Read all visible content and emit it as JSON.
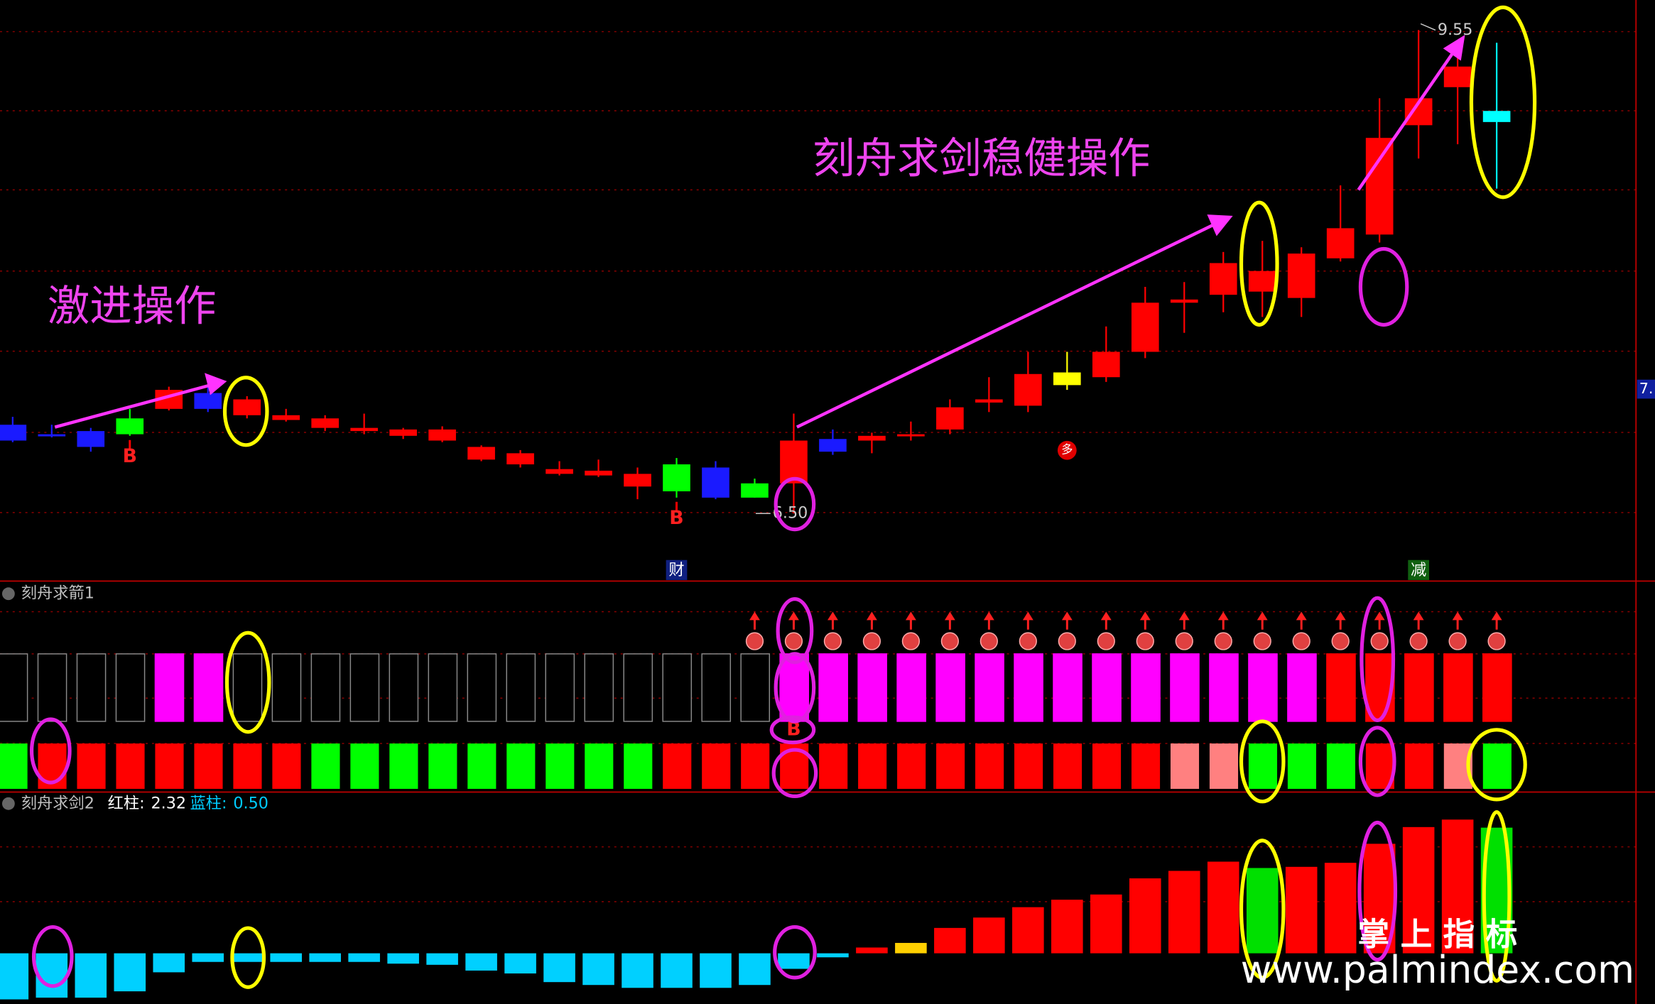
{
  "chart_data": [
    {
      "type": "candlestick",
      "annotations": [
        "激进操作",
        "刻舟求剑稳健操作"
      ],
      "open": [
        7.06,
        7.0,
        7.02,
        7.1,
        7.16,
        7.26,
        7.12,
        7.09,
        7.04,
        7.02,
        6.99,
        6.96,
        6.84,
        6.81,
        6.75,
        6.74,
        6.67,
        6.81,
        6.79,
        6.69,
        6.69,
        6.97,
        6.96,
        6.99,
        7.03,
        7.2,
        7.18,
        7.39,
        7.36,
        7.52,
        7.83,
        7.88,
        7.9,
        7.86,
        8.11,
        8.26,
        8.95,
        9.19,
        9.04
      ],
      "high": [
        7.11,
        7.06,
        7.04,
        7.16,
        7.3,
        7.3,
        7.24,
        7.16,
        7.12,
        7.13,
        7.04,
        7.05,
        6.93,
        6.9,
        6.83,
        6.84,
        6.79,
        6.85,
        6.83,
        6.72,
        7.13,
        7.03,
        7.01,
        7.08,
        7.22,
        7.36,
        7.52,
        7.52,
        7.68,
        7.93,
        7.96,
        8.15,
        8.22,
        8.18,
        8.57,
        9.12,
        9.55,
        9.48,
        9.47
      ],
      "low": [
        6.95,
        6.98,
        6.89,
        6.99,
        7.15,
        7.14,
        7.1,
        7.08,
        7.02,
        7.0,
        6.97,
        6.95,
        6.83,
        6.79,
        6.74,
        6.73,
        6.59,
        6.6,
        6.59,
        6.6,
        6.5,
        6.87,
        6.88,
        6.96,
        7.0,
        7.14,
        7.14,
        7.28,
        7.33,
        7.48,
        7.64,
        7.77,
        7.74,
        7.74,
        8.09,
        8.21,
        8.74,
        8.83,
        8.55
      ],
      "close": [
        6.96,
        6.99,
        6.92,
        7.0,
        7.28,
        7.16,
        7.22,
        7.12,
        7.1,
        7.04,
        7.03,
        7.03,
        6.92,
        6.88,
        6.78,
        6.77,
        6.75,
        6.64,
        6.6,
        6.6,
        6.96,
        6.89,
        6.99,
        7.0,
        7.17,
        7.22,
        7.38,
        7.31,
        7.52,
        7.83,
        7.85,
        8.08,
        8.03,
        8.14,
        8.3,
        8.87,
        9.12,
        9.32,
        8.97
      ],
      "colors": [
        "#1a1aff",
        "#1a1aff",
        "#1a1aff",
        "#00ff00",
        "#ff0000",
        "#1a1aff",
        "#ff0000",
        "#ff0000",
        "#ff0000",
        "#ff0000",
        "#ff0000",
        "#ff0000",
        "#ff0000",
        "#ff0000",
        "#ff0000",
        "#ff0000",
        "#ff0000",
        "#00ff00",
        "#1a1aff",
        "#00ff00",
        "#ff0000",
        "#1a1aff",
        "#ff0000",
        "#ff0000",
        "#ff0000",
        "#ff0000",
        "#ff0000",
        "#ffff00",
        "#ff0000",
        "#ff0000",
        "#ff0000",
        "#ff0000",
        "#ff0000",
        "#ff0000",
        "#ff0000",
        "#ff0000",
        "#ff0000",
        "#ff0000",
        "#00ffff"
      ],
      "signals": [
        null,
        null,
        null,
        "B",
        null,
        null,
        null,
        null,
        null,
        null,
        null,
        null,
        null,
        null,
        null,
        null,
        null,
        "B",
        null,
        null,
        null,
        null,
        null,
        null,
        null,
        null,
        null,
        null,
        null,
        null,
        null,
        null,
        null,
        null,
        null,
        null,
        null,
        null,
        null
      ],
      "badges": [
        null,
        null,
        null,
        null,
        null,
        null,
        null,
        null,
        null,
        null,
        null,
        null,
        null,
        null,
        null,
        null,
        null,
        null,
        null,
        null,
        null,
        null,
        null,
        null,
        null,
        null,
        null,
        "多",
        null,
        null,
        null,
        null,
        null,
        null,
        null,
        null,
        null,
        null,
        null
      ],
      "footer_labels": [
        null,
        null,
        null,
        null,
        null,
        null,
        null,
        null,
        null,
        null,
        null,
        null,
        null,
        null,
        null,
        null,
        null,
        "财",
        null,
        null,
        null,
        null,
        null,
        null,
        null,
        null,
        null,
        null,
        null,
        null,
        null,
        null,
        null,
        null,
        null,
        null,
        "减",
        null,
        null
      ],
      "high_labels": [
        null,
        null,
        null,
        null,
        null,
        null,
        null,
        null,
        null,
        null,
        null,
        null,
        null,
        null,
        null,
        null,
        null,
        null,
        null,
        null,
        null,
        null,
        null,
        null,
        null,
        null,
        null,
        null,
        null,
        null,
        null,
        null,
        null,
        null,
        null,
        null,
        "9.55",
        null,
        null
      ],
      "low_labels": [
        null,
        null,
        null,
        null,
        null,
        null,
        null,
        null,
        null,
        null,
        null,
        null,
        null,
        null,
        null,
        null,
        null,
        null,
        null,
        null,
        "6.50",
        null,
        null,
        null,
        null,
        null,
        null,
        null,
        null,
        null,
        null,
        null,
        null,
        null,
        null,
        null,
        null,
        null,
        null
      ],
      "price_tag": "7.",
      "ylim": [
        6.08,
        9.74
      ]
    },
    {
      "type": "signal-blocks",
      "title": "刻舟求箭1",
      "upper_colors": [
        "#000000",
        "#000000",
        "#000000",
        "#000000",
        "#ff00ff",
        "#ff00ff",
        "#000000",
        "#000000",
        "#000000",
        "#000000",
        "#000000",
        "#000000",
        "#000000",
        "#000000",
        "#000000",
        "#000000",
        "#000000",
        "#000000",
        "#000000",
        "#000000",
        "#ff00ff",
        "#ff00ff",
        "#ff00ff",
        "#ff00ff",
        "#ff00ff",
        "#ff00ff",
        "#ff00ff",
        "#ff00ff",
        "#ff00ff",
        "#ff00ff",
        "#ff00ff",
        "#ff00ff",
        "#ff00ff",
        "#ff00ff",
        "#ff0000",
        "#ff0000",
        "#ff0000",
        "#ff0000",
        "#ff0000"
      ],
      "lower_colors": [
        "#00ff00",
        "#ff0000",
        "#ff0000",
        "#ff0000",
        "#ff0000",
        "#ff0000",
        "#ff0000",
        "#ff0000",
        "#00ff00",
        "#00ff00",
        "#00ff00",
        "#00ff00",
        "#00ff00",
        "#00ff00",
        "#00ff00",
        "#00ff00",
        "#00ff00",
        "#ff0000",
        "#ff0000",
        "#ff0000",
        "#ff0000",
        "#ff0000",
        "#ff0000",
        "#ff0000",
        "#ff0000",
        "#ff0000",
        "#ff0000",
        "#ff0000",
        "#ff0000",
        "#ff0000",
        "#ff8080",
        "#ff8080",
        "#00ff00",
        "#00ff00",
        "#00ff00",
        "#ff0000",
        "#ff0000",
        "#ff8080",
        "#00ff00"
      ],
      "signals": [
        null,
        null,
        null,
        null,
        null,
        null,
        null,
        null,
        null,
        null,
        null,
        null,
        null,
        null,
        null,
        null,
        null,
        null,
        null,
        null,
        "B",
        null,
        null,
        null,
        null,
        null,
        null,
        null,
        null,
        null,
        null,
        null,
        null,
        null,
        null,
        null,
        null,
        null,
        null
      ]
    },
    {
      "type": "bar",
      "title": "刻舟求剑2",
      "readouts": [
        {
          "name": "红柱:",
          "value": 2.32,
          "color": "#ffffff"
        },
        {
          "name": "蓝柱:",
          "value": {
            "value": 0.5,
            "label": "0.50"
          },
          "color": "#00ccff"
        }
      ],
      "values": [
        -0.8,
        -0.77,
        -0.77,
        -0.66,
        -0.33,
        -0.15,
        -0.15,
        -0.15,
        -0.15,
        -0.15,
        -0.18,
        -0.2,
        -0.3,
        -0.35,
        -0.5,
        -0.55,
        -0.6,
        -0.6,
        -0.6,
        -0.55,
        -0.27,
        -0.07,
        0.1,
        0.18,
        0.44,
        0.62,
        0.8,
        0.93,
        1.02,
        1.3,
        1.43,
        1.59,
        1.48,
        1.5,
        1.57,
        1.9,
        2.19,
        2.32,
        2.18
      ],
      "colors": [
        "#00d0ff",
        "#00d0ff",
        "#00d0ff",
        "#00d0ff",
        "#00d0ff",
        "#00d0ff",
        "#00d0ff",
        "#00d0ff",
        "#00d0ff",
        "#00d0ff",
        "#00d0ff",
        "#00d0ff",
        "#00d0ff",
        "#00d0ff",
        "#00d0ff",
        "#00d0ff",
        "#00d0ff",
        "#00d0ff",
        "#00d0ff",
        "#00d0ff",
        "#00d0ff",
        "#00d0ff",
        "#ff0000",
        "#ffd000",
        "#ff0000",
        "#ff0000",
        "#ff0000",
        "#ff0000",
        "#ff0000",
        "#ff0000",
        "#ff0000",
        "#ff0000",
        "#00e000",
        "#ff0000",
        "#ff0000",
        "#ff0000",
        "#ff0000",
        "#ff0000",
        "#00e000"
      ],
      "ylim": [
        -0.88,
        2.78
      ]
    }
  ],
  "watermark": {
    "brand": "掌 上 指 标",
    "url": "www.palmindex.com"
  }
}
